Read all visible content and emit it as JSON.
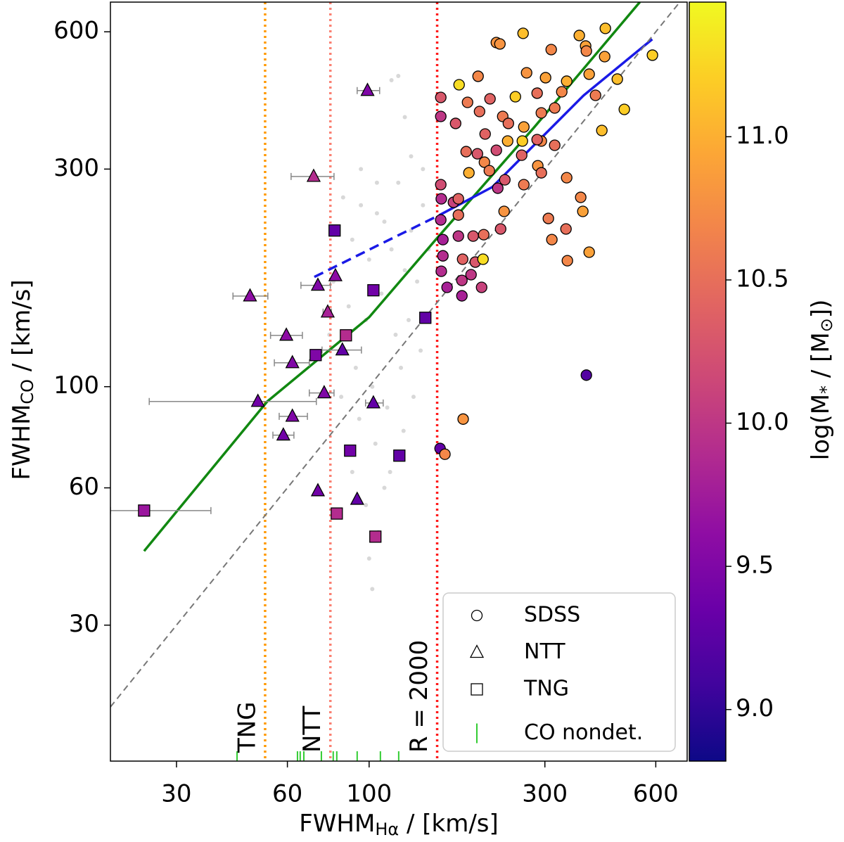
{
  "chart_data": {
    "type": "scatter",
    "log_x": true,
    "log_y": true,
    "grid": false,
    "x_label": {
      "main": "FWHM",
      "sub": "Hα",
      "unit": " / [km/s]"
    },
    "y_label": {
      "main": "FWHM",
      "sub": "CO",
      "unit": " / [km/s]"
    },
    "xlim": [
      19.85,
      730
    ],
    "ylim": [
      15.1,
      697
    ],
    "xticks": [
      30,
      60,
      100,
      300,
      600
    ],
    "yticks": [
      30,
      60,
      100,
      300,
      600
    ],
    "colorbar": {
      "label": {
        "a": "log(M",
        "b": "*",
        "c": " / [M",
        "d": "⊙",
        "e": "])"
      },
      "lim": [
        8.82,
        11.47
      ],
      "ticks": [
        {
          "value": 9,
          "label": "9.0"
        },
        {
          "value": 9.5,
          "label": "9.5"
        },
        {
          "value": 10,
          "label": "10.0"
        },
        {
          "value": 10.5,
          "label": "10.5"
        },
        {
          "value": 11,
          "label": "11.0"
        }
      ],
      "colormap": [
        "#0d0887",
        "#41049d",
        "#6a00a8",
        "#8f0da4",
        "#b12a90",
        "#cc4778",
        "#e16462",
        "#f2844b",
        "#fca636",
        "#fcce25",
        "#f0f921"
      ]
    },
    "legend": "lower right",
    "series": [
      {
        "name": "SDSS",
        "marker": "circle",
        "x": [
          221.5,
          226.5,
          261.8,
          372,
          437.8,
          312.1,
          387,
          388.8,
          435.9,
          587.6,
          175.5,
          197.6,
          156.5,
          185,
          212.9,
          249.5,
          267.6,
          301.3,
          343.8,
          333.4,
          395.7,
          411.7,
          471.8,
          492.9,
          428.3,
          156.5,
          171.7,
          199.4,
          206.5,
          230.5,
          263,
          285.8,
          293.4,
          319,
          237.7,
          260.6,
          293.4,
          319,
          259.5,
          287,
          183.4,
          196.8,
          205.6,
          221.5,
          186.6,
          212,
          233.6,
          293.4,
          343.8,
          375.3,
          156.5,
          157,
          169.4,
          156.5,
          174.7,
          223.5,
          263,
          380.3,
          342.3,
          158.6,
          174.7,
          191.6,
          204.7,
          158.6,
          179.4,
          194.2,
          203.8,
          189.1,
          157,
          178.6,
          162.8,
          178.6,
          202,
          232.5,
          313.4,
          395.7,
          345.3,
          174.7,
          227.5,
          306.6,
          285.8,
          238.8,
          388.8,
          155.8,
          160.6,
          180
        ],
        "y": [
          568.3,
          564.3,
          595.3,
          588.9,
          610.3,
          548.5,
          558.4,
          544.6,
          529.3,
          533.2,
          459.2,
          479.3,
          430.8,
          420.2,
          427.7,
          432.3,
          487.8,
          475.9,
          467.5,
          443.2,
          484.4,
          435.4,
          472.5,
          405.5,
          364.5,
          391.4,
          377.8,
          401.2,
          358.1,
          391.4,
          371.1,
          440.1,
          398.4,
          408.4,
          345.6,
          345.6,
          345.6,
          338.3,
          321.8,
          305.1,
          327.6,
          324.1,
          310.6,
          329.9,
          294.4,
          297.6,
          284.2,
          294.4,
          287.2,
          260.1,
          277.3,
          258.2,
          253.7,
          232.1,
          237.9,
          272.4,
          277.3,
          242.3,
          221.7,
          210.1,
          213.9,
          213.9,
          215.4,
          193.6,
          190.3,
          187.6,
          190.3,
          176,
          179.1,
          171,
          165.1,
          158.2,
          165.1,
          242.3,
          210.1,
          197.2,
          188.9,
          258.2,
          221.7,
          233.8,
          348.1,
          377.8,
          106,
          73.2,
          71.1,
          84.9
        ],
        "mass": [
          10.8,
          10.8,
          11.1,
          11,
          11.1,
          10.7,
          10.9,
          10.7,
          10.9,
          11.2,
          11.3,
          10.7,
          10.3,
          10.6,
          10.4,
          11.2,
          10.8,
          10.9,
          11,
          10.7,
          10.9,
          10.6,
          11.1,
          11.2,
          11.1,
          10,
          10.3,
          10.5,
          10.4,
          10.6,
          10.9,
          10.5,
          10.6,
          10.6,
          11,
          11.2,
          10.7,
          10.5,
          10.4,
          10.8,
          10.5,
          10.3,
          10.7,
          10.2,
          11,
          10.6,
          10.3,
          10.5,
          10.7,
          10.7,
          10.2,
          9.9,
          10.1,
          9.9,
          10.5,
          10,
          10.6,
          10.9,
          10.5,
          9.8,
          10,
          10.3,
          10.5,
          9.9,
          10.4,
          10.3,
          11.3,
          10,
          9.9,
          10,
          9.8,
          9.8,
          10.1,
          10.8,
          10.7,
          10.9,
          10.7,
          10.4,
          10.3,
          10.6,
          10.4,
          10.5,
          9.2,
          9.3,
          10.7,
          10.8
        ]
      },
      {
        "name": "NTT",
        "marker": "triangle",
        "x": [
          99,
          70.7,
          47.5,
          72.6,
          81,
          77.2,
          59.6,
          61.9,
          84.6,
          49.9,
          75.5,
          102.7,
          61.9,
          58.5,
          72.6,
          92.8
        ],
        "y": [
          446,
          289,
          158,
          166.8,
          175,
          145.7,
          129.6,
          112.8,
          120.3,
          92.8,
          96.9,
          92.1,
          86.1,
          78.3,
          59.1,
          56.6
        ],
        "mass": [
          9.5,
          9.9,
          9.6,
          9.5,
          9.6,
          9.8,
          9.6,
          9.5,
          9.3,
          9.4,
          9.5,
          9.3,
          9.5,
          9.4,
          9.4,
          9.3
        ],
        "x_lo": [
          92.8,
          61.4,
          42.7,
          65.3,
          null,
          75,
          54,
          55.3,
          74.5,
          25.3,
          68.8,
          97.8,
          57,
          54.8,
          null,
          null
        ],
        "x_hi": [
          106.8,
          80.3,
          53.1,
          78.5,
          null,
          79,
          65.9,
          68.8,
          95.3,
          71.9,
          80.3,
          109.2,
          68,
          62.5,
          null,
          null
        ]
      },
      {
        "name": "TNG",
        "marker": "square",
        "x": [
          80.6,
          102.7,
          142.1,
          86.5,
          71.6,
          88.8,
          120.8,
          81.7,
          104,
          24.5
        ],
        "y": [
          220,
          162.7,
          141.6,
          129.6,
          117.3,
          72.4,
          70.6,
          52.7,
          46.9,
          53.5
        ],
        "mass": [
          9.3,
          9.4,
          9.3,
          9.9,
          9.5,
          9.4,
          9.3,
          9.9,
          9.9,
          9.7
        ],
        "x_lo": [
          null,
          null,
          null,
          null,
          null,
          null,
          null,
          null,
          null,
          19.85
        ],
        "x_hi": [
          null,
          null,
          null,
          null,
          null,
          null,
          null,
          null,
          null,
          37.2
        ]
      },
      {
        "name": "CO nondet.",
        "marker": "tick",
        "color": "#33cc33",
        "x": [
          43.8,
          63.9,
          65,
          66.5,
          74.2,
          79.9,
          81.7,
          92.8,
          107.3,
          120.3
        ]
      }
    ],
    "background": {
      "color": "#d8d8d8",
      "x": [
        85,
        95,
        105,
        110,
        120,
        130,
        140,
        115,
        100,
        90,
        125,
        135,
        145,
        80,
        88,
        98,
        108,
        118,
        128,
        138,
        92,
        102,
        112,
        122,
        132,
        84,
        94,
        104,
        114,
        124,
        90,
        98,
        106,
        100,
        102,
        110,
        86,
        78,
        140,
        130,
        115,
        120,
        125,
        95,
        105
      ],
      "y": [
        260,
        250,
        240,
        230,
        280,
        320,
        300,
        200,
        190,
        210,
        180,
        170,
        200,
        170,
        150,
        140,
        160,
        130,
        140,
        120,
        110,
        100,
        90,
        110,
        95,
        95,
        85,
        75,
        65,
        80,
        65,
        55,
        48,
        42,
        36,
        60,
        120,
        130,
        250,
        220,
        470,
        480,
        390,
        300,
        280
      ]
    },
    "lines": [
      {
        "color": "#118811",
        "dash": "none",
        "x": [
          24.5,
          52.9,
          100,
          151.6,
          281,
          543
        ],
        "y": [
          43.6,
          92.8,
          142,
          210,
          371,
          697
        ]
      },
      {
        "color": "#1a1ae6",
        "dash": "14 8",
        "x": [
          71,
          106.8,
          155.5
        ],
        "y": [
          174,
          205,
          238
        ]
      },
      {
        "color": "#1a1ae6",
        "dash": "none",
        "x": [
          155.5,
          216,
          382,
          587
        ],
        "y": [
          238,
          274,
          435,
          578
        ]
      },
      {
        "color": "#777777",
        "dash": "9 6",
        "x": [
          19.85,
          730
        ],
        "y": [
          19.85,
          730
        ]
      }
    ],
    "vlines": [
      {
        "label": "TNG",
        "x": 52.2,
        "color": "#ff9900"
      },
      {
        "label": "NTT",
        "x": 78.5,
        "color": "#fa8072"
      },
      {
        "label": "R = 2000",
        "x": 153,
        "color": "#ff1a1a"
      }
    ]
  }
}
